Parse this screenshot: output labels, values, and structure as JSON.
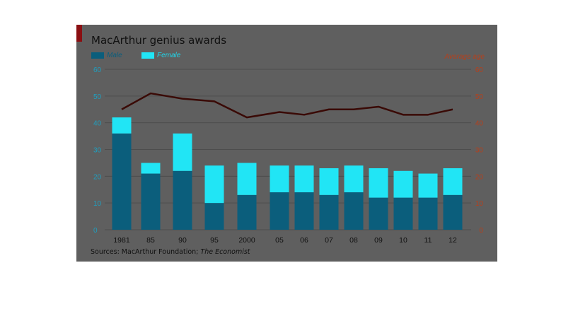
{
  "chart_data": {
    "type": "bar",
    "title": "MacArthur genius awards",
    "left_axis": {
      "ylim": [
        0,
        60
      ],
      "ticks": [
        0,
        10,
        20,
        30,
        40,
        50,
        60
      ]
    },
    "right_axis": {
      "label": "Average age",
      "ylim": [
        0,
        60
      ],
      "ticks": [
        0,
        10,
        20,
        30,
        40,
        50,
        60
      ]
    },
    "categories": [
      "1981",
      "85",
      "90",
      "95",
      "2000",
      "05",
      "06",
      "07",
      "08",
      "09",
      "10",
      "11",
      "12"
    ],
    "series": [
      {
        "name": "Male",
        "kind": "bar-stacked",
        "color": "#0b5e7c",
        "values": [
          36,
          21,
          22,
          10,
          13,
          14,
          14,
          13,
          14,
          12,
          12,
          12,
          13
        ]
      },
      {
        "name": "Female",
        "kind": "bar-stacked",
        "color": "#21e5f5",
        "values": [
          6,
          4,
          14,
          14,
          12,
          10,
          10,
          10,
          10,
          11,
          10,
          9,
          10
        ]
      },
      {
        "name": "Average age",
        "kind": "line",
        "axis": "right",
        "color": "#3a0a06",
        "values": [
          45,
          51,
          49,
          48,
          42,
          44,
          43,
          45,
          45,
          46,
          43,
          43,
          45
        ]
      }
    ],
    "grid": true,
    "legend": "top-left",
    "source": {
      "prefix": "Sources: MacArthur Foundation; ",
      "italic": "The Economist"
    }
  },
  "colors": {
    "panel_background": "#5f5f5f",
    "gridline": "#4d4d4d",
    "left_tick_text": "#1f9fbf",
    "right_tick_text": "#b5401c",
    "bar_male": "#0b5e7c",
    "bar_female": "#21e5f5",
    "line": "#3a0a06"
  }
}
